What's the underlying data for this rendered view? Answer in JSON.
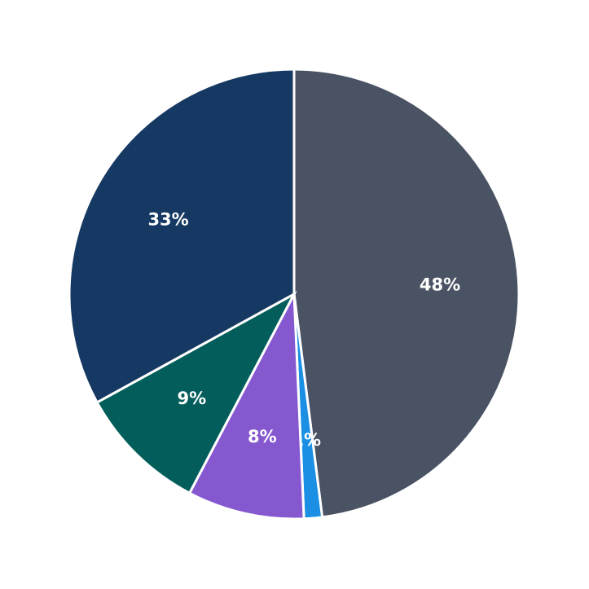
{
  "chart_data": {
    "type": "pie",
    "title": "",
    "start_angle": "12 o'clock, clockwise",
    "slices": [
      {
        "label": "48%",
        "value": 48,
        "color": "#4a5363"
      },
      {
        "label": "1%",
        "value": 1.3,
        "color": "#1a8fe3"
      },
      {
        "label": "8%",
        "value": 8.4,
        "color": "#8558d0"
      },
      {
        "label": "9%",
        "value": 9.3,
        "color": "#035e5b"
      },
      {
        "label": "33%",
        "value": 33,
        "color": "#153962"
      }
    ],
    "legend": null
  }
}
